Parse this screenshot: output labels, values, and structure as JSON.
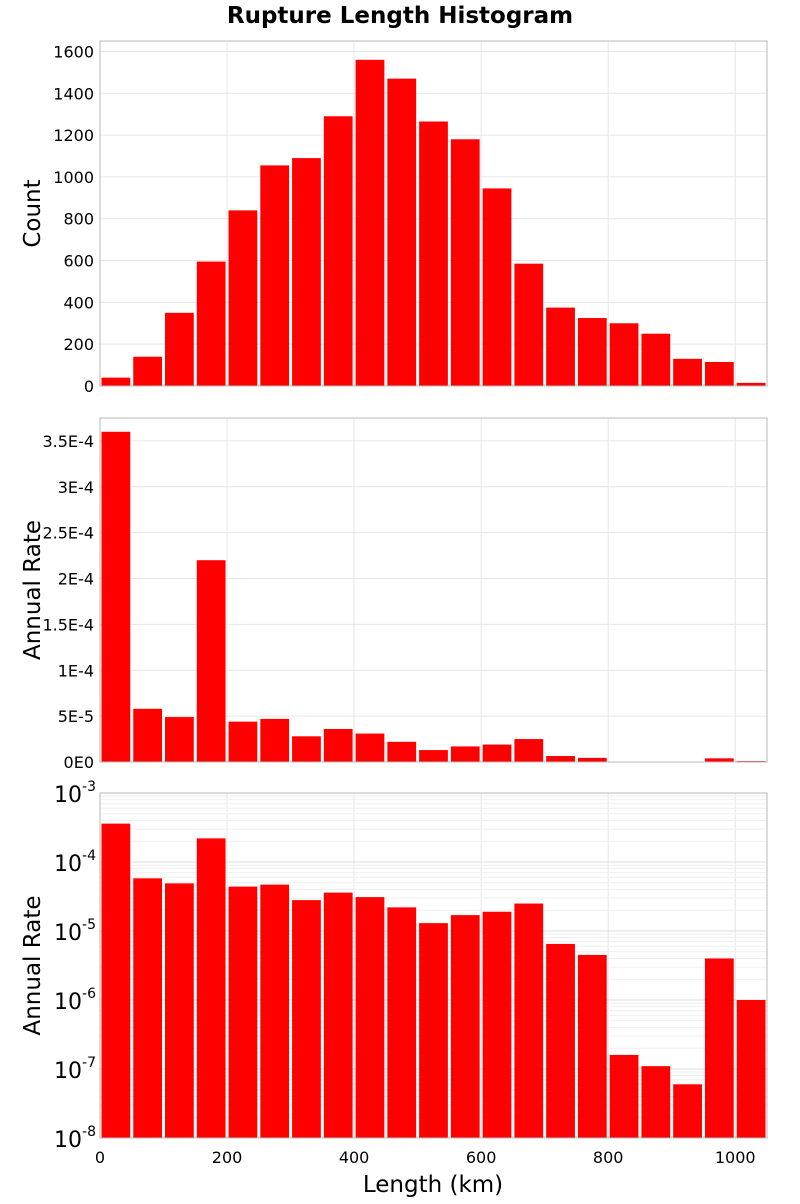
{
  "title": "Rupture Length Histogram",
  "xlabel": "Length (km)",
  "chart_data": [
    {
      "type": "bar",
      "title": "Rupture Length Histogram",
      "ylabel": "Count",
      "x_bin_centers": [
        25,
        75,
        125,
        175,
        225,
        275,
        325,
        375,
        425,
        475,
        525,
        575,
        625,
        675,
        725,
        775,
        825,
        875,
        925,
        975,
        1025
      ],
      "bin_width": 50,
      "values": [
        40,
        140,
        350,
        595,
        840,
        1055,
        1090,
        1290,
        1560,
        1470,
        1265,
        1180,
        945,
        585,
        375,
        325,
        300,
        250,
        130,
        115,
        15
      ],
      "xlim": [
        0,
        1050
      ],
      "ylim": [
        0,
        1650
      ],
      "yticks": [
        0,
        200,
        400,
        600,
        800,
        1000,
        1200,
        1400,
        1600
      ],
      "ytick_labels": [
        "0",
        "200",
        "400",
        "600",
        "800",
        "1000",
        "1200",
        "1400",
        "1600"
      ],
      "grid": true,
      "color": "#ff0000"
    },
    {
      "type": "bar",
      "ylabel": "Annual Rate",
      "x_bin_centers": [
        25,
        75,
        125,
        175,
        225,
        275,
        325,
        375,
        425,
        475,
        525,
        575,
        625,
        675,
        725,
        775,
        825,
        875,
        925,
        975,
        1025
      ],
      "bin_width": 50,
      "values": [
        0.00036,
        5.8e-05,
        4.9e-05,
        0.00022,
        4.4e-05,
        4.7e-05,
        2.8e-05,
        3.6e-05,
        3.1e-05,
        2.2e-05,
        1.3e-05,
        1.7e-05,
        1.9e-05,
        2.5e-05,
        6.5e-06,
        4.5e-06,
        1.6e-07,
        1.1e-07,
        6e-08,
        4e-06,
        1e-06
      ],
      "xlim": [
        0,
        1050
      ],
      "ylim": [
        0,
        0.000375
      ],
      "yticks": [
        0,
        5e-05,
        0.0001,
        0.00015,
        0.0002,
        0.00025,
        0.0003,
        0.00035
      ],
      "ytick_labels": [
        "0E0",
        "5E-5",
        "1E-4",
        "1.5E-4",
        "2E-4",
        "2.5E-4",
        "3E-4",
        "3.5E-4"
      ],
      "grid": true,
      "color": "#ff0000"
    },
    {
      "type": "bar",
      "ylabel": "Annual Rate",
      "y_scale": "log",
      "x_bin_centers": [
        25,
        75,
        125,
        175,
        225,
        275,
        325,
        375,
        425,
        475,
        525,
        575,
        625,
        675,
        725,
        775,
        825,
        875,
        925,
        975,
        1025
      ],
      "bin_width": 50,
      "values": [
        0.00036,
        5.8e-05,
        4.9e-05,
        0.00022,
        4.4e-05,
        4.7e-05,
        2.8e-05,
        3.6e-05,
        3.1e-05,
        2.2e-05,
        1.3e-05,
        1.7e-05,
        1.9e-05,
        2.5e-05,
        6.5e-06,
        4.5e-06,
        1.6e-07,
        1.1e-07,
        6e-08,
        4e-06,
        1e-06
      ],
      "xlim": [
        0,
        1050
      ],
      "ylim": [
        1e-08,
        0.001
      ],
      "ytick_exponents": [
        "-8",
        "-7",
        "-6",
        "-5",
        "-4",
        "-3"
      ],
      "ytick_base": "10",
      "xticks": [
        0,
        200,
        400,
        600,
        800,
        1000
      ],
      "xtick_labels": [
        "0",
        "200",
        "400",
        "600",
        "800",
        "1000"
      ],
      "grid": true,
      "color": "#ff0000"
    }
  ]
}
